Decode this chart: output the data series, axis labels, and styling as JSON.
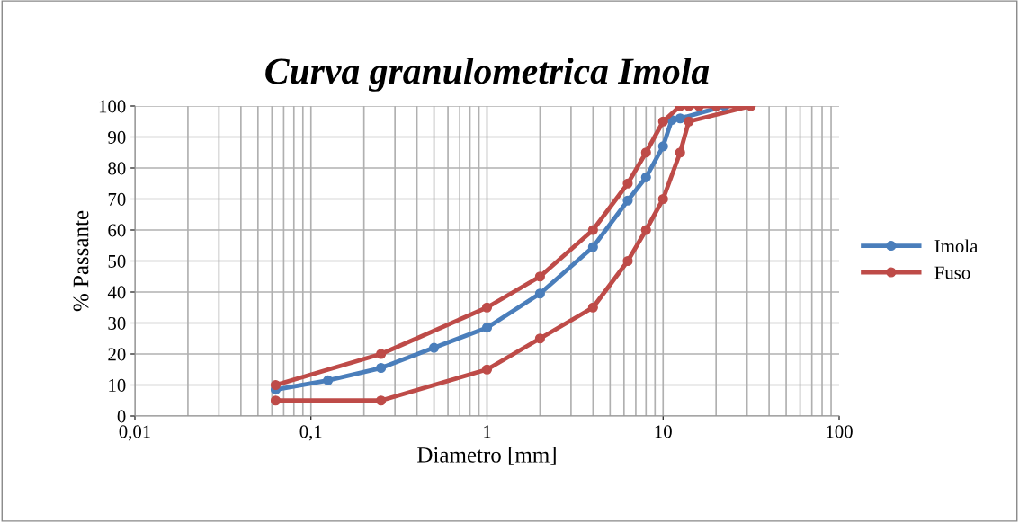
{
  "chart_data": {
    "type": "line",
    "title": "Curva granulometrica Imola",
    "xlabel": "Diametro [mm]",
    "ylabel": "% Passante",
    "log": "x",
    "xlim": [
      0.01,
      100
    ],
    "xticks": [
      {
        "value": 0.01,
        "label": "0,01"
      },
      {
        "value": 0.1,
        "label": "0,1"
      },
      {
        "value": 1,
        "label": "1"
      },
      {
        "value": 10,
        "label": "10"
      },
      {
        "value": 100,
        "label": "100"
      }
    ],
    "ylim": [
      0,
      100
    ],
    "yticks": [
      0,
      10,
      20,
      30,
      40,
      50,
      60,
      70,
      80,
      90,
      100
    ],
    "grid": true,
    "legend": "right",
    "marker": "circle",
    "line_style": "solid",
    "series": [
      {
        "name": "Imola",
        "color": "#4a7ebb",
        "x": [
          0.063,
          0.125,
          0.25,
          0.5,
          1,
          2,
          4,
          6.3,
          8,
          10,
          11.2,
          12.5,
          22.4
        ],
        "values": [
          8.5,
          11.5,
          15.5,
          22,
          28.5,
          39.5,
          54.5,
          69.5,
          77,
          87,
          95.5,
          96,
          100
        ]
      },
      {
        "name": "Fuso",
        "color": "#be4b48",
        "x": [
          0.063,
          0.25,
          1,
          2,
          4,
          6.3,
          8,
          10,
          12.5,
          14,
          16,
          20,
          31.5,
          14,
          12.5,
          10,
          8,
          6.3,
          4,
          2,
          1,
          0.25,
          0.063
        ],
        "values": [
          10,
          20,
          35,
          45,
          60,
          75,
          85,
          95,
          100,
          100,
          100,
          100,
          100,
          95,
          85,
          70,
          60,
          50,
          35,
          25,
          15,
          5,
          5
        ]
      }
    ]
  }
}
